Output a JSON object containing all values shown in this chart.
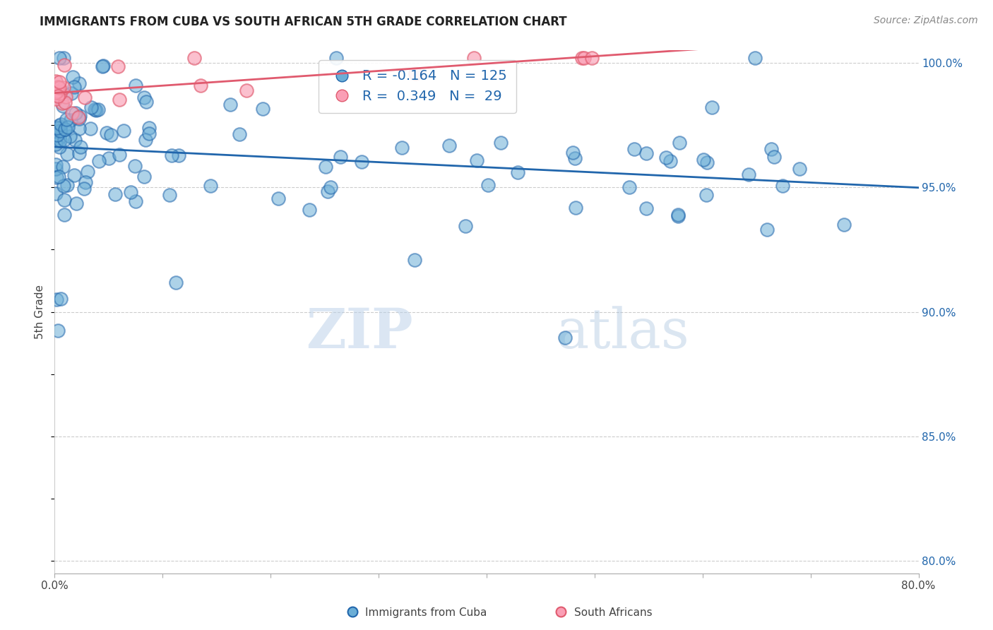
{
  "title": "IMMIGRANTS FROM CUBA VS SOUTH AFRICAN 5TH GRADE CORRELATION CHART",
  "source": "Source: ZipAtlas.com",
  "ylabel": "5th Grade",
  "xlim": [
    0.0,
    0.8
  ],
  "ylim": [
    0.795,
    1.005
  ],
  "blue_R": -0.164,
  "blue_N": 125,
  "pink_R": 0.349,
  "pink_N": 29,
  "blue_color": "#6baed6",
  "pink_color": "#fa9fb5",
  "blue_line_color": "#2166ac",
  "pink_line_color": "#e05a6e",
  "legend_label_blue": "Immigrants from Cuba",
  "legend_label_pink": "South Africans",
  "watermark_zip": "ZIP",
  "watermark_atlas": "atlas"
}
